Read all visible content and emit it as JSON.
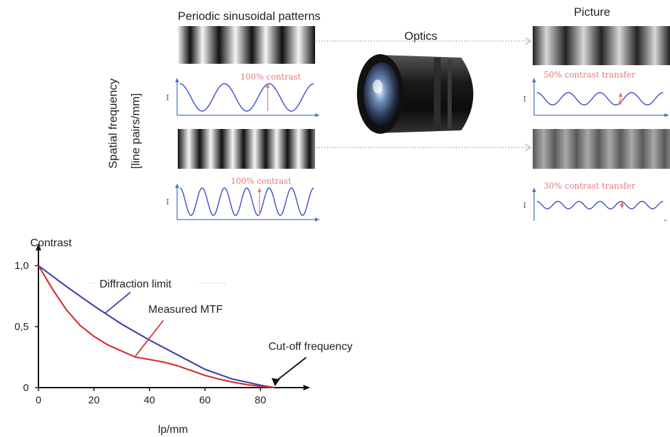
{
  "header": {
    "patterns_title": "Periodic sinusoidal patterns",
    "picture_title": "Picture",
    "optics_label": "Optics"
  },
  "axis_label": {
    "line1": "Spatial frequency",
    "line2": "[line pairs/mm]"
  },
  "input_waves": [
    {
      "label": "100% contrast",
      "axis_symbol": "I",
      "cycles": 3,
      "amplitude": 1.0
    },
    {
      "label": "100% contrast",
      "axis_symbol": "I",
      "cycles": 6,
      "amplitude": 1.0
    }
  ],
  "output_waves": [
    {
      "label": "50% contrast transfer",
      "axis_symbol": "I",
      "cycles": 4,
      "amplitude": 0.5
    },
    {
      "label": "30% contrast transfer",
      "axis_symbol": "I",
      "cycles": 6,
      "amplitude": 0.3
    }
  ],
  "colors": {
    "wave": "#3a48c8",
    "axis": "#4a74c8",
    "red_label": "#e4787d",
    "diffraction": "#3f43a8",
    "measured": "#d43030",
    "dotted_arrow": "#9ab0d8"
  },
  "chart_data": {
    "type": "line",
    "ylabel": "Contrast",
    "xlabel": "lp/mm",
    "xlim": [
      0,
      95
    ],
    "ylim": [
      0,
      1.08
    ],
    "xticks": [
      "0",
      "20",
      "40",
      "60",
      "80"
    ],
    "yticks": [
      "0",
      "0,5",
      "1,0"
    ],
    "series": [
      {
        "name": "Diffraction limit",
        "x": [
          0,
          10,
          20,
          30,
          40,
          50,
          60,
          70,
          80,
          85
        ],
        "y": [
          1.0,
          0.83,
          0.67,
          0.52,
          0.39,
          0.27,
          0.15,
          0.07,
          0.02,
          0.0
        ]
      },
      {
        "name": "Measured MTF",
        "x": [
          0,
          5,
          10,
          15,
          20,
          25,
          30,
          35,
          40,
          45,
          50,
          55,
          60,
          65,
          70,
          75,
          80,
          85
        ],
        "y": [
          1.0,
          0.81,
          0.64,
          0.51,
          0.42,
          0.35,
          0.3,
          0.25,
          0.23,
          0.21,
          0.18,
          0.14,
          0.1,
          0.07,
          0.045,
          0.025,
          0.01,
          0.0
        ]
      }
    ],
    "annotations": [
      {
        "text": "Diffraction limit",
        "series": "Diffraction limit"
      },
      {
        "text": "Measured MTF",
        "series": "Measured MTF"
      },
      {
        "text": "Cut-off frequency",
        "x": 85
      }
    ]
  }
}
